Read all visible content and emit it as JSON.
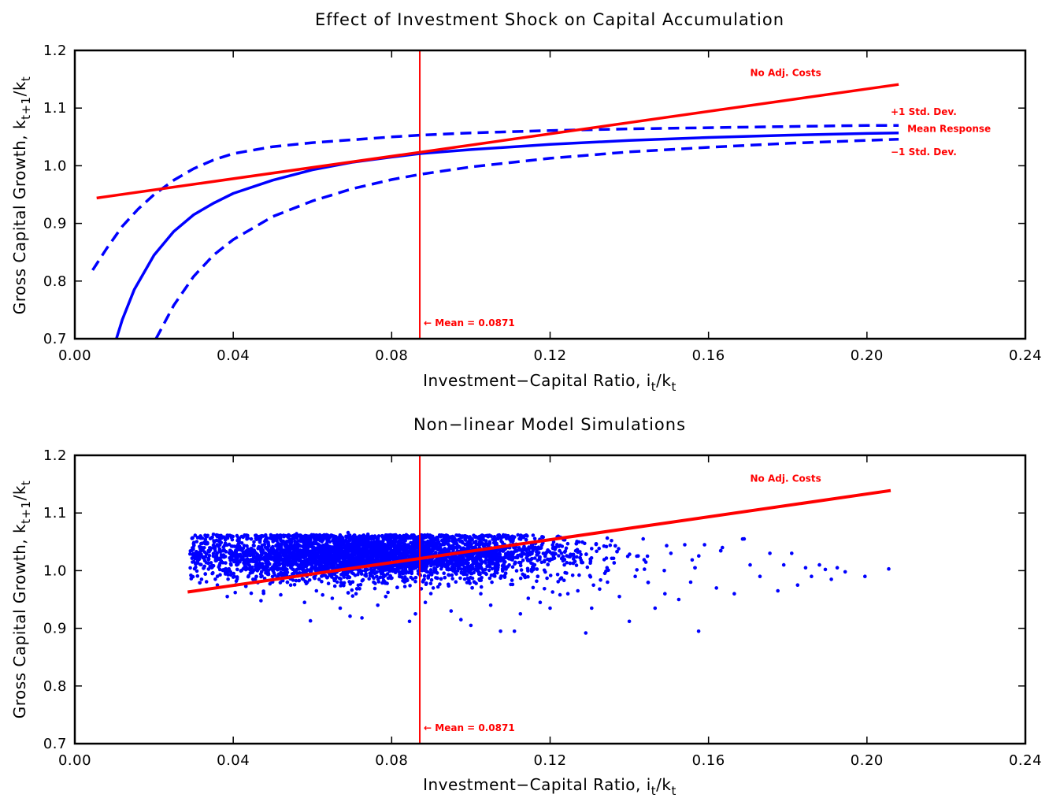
{
  "chart_data": [
    {
      "type": "line",
      "title": "Effect of Investment Shock on Capital Accumulation",
      "xlabel": "Investment−Capital Ratio, i_t/k_t",
      "ylabel": "Gross Capital Growth, k_t+1/k_t",
      "xlabel_parts": {
        "main": "Investment−Capital Ratio, i",
        "sub1": "t",
        "mid": "/k",
        "sub2": "t"
      },
      "ylabel_parts": {
        "main": "Gross Capital Growth, k",
        "sub1": "t+1",
        "mid": "/k",
        "sub2": "t"
      },
      "xlim": [
        0.0,
        0.24
      ],
      "ylim": [
        0.7,
        1.2
      ],
      "xticks": [
        0.0,
        0.04,
        0.08,
        0.12,
        0.16,
        0.2,
        0.24
      ],
      "xtick_labels": [
        "0.00",
        "0.04",
        "0.08",
        "0.12",
        "0.16",
        "0.20",
        "0.24"
      ],
      "yticks": [
        0.7,
        0.8,
        0.9,
        1.0,
        1.1,
        1.2
      ],
      "ytick_labels": [
        "0.7",
        "0.8",
        "0.9",
        "1.0",
        "1.1",
        "1.2"
      ],
      "grid": false,
      "colors": {
        "line": "#ff0000",
        "response": "#0000ff"
      },
      "series": [
        {
          "name": "No Adj. Costs",
          "style": "solid",
          "color": "#ff0000",
          "x": [
            0.0055,
            0.208
          ],
          "y": [
            0.944,
            1.141
          ]
        },
        {
          "name": "+1 Std. Dev.",
          "style": "dashed",
          "color": "#0000ff",
          "x": [
            0.0045,
            0.008,
            0.012,
            0.016,
            0.02,
            0.025,
            0.03,
            0.035,
            0.04,
            0.05,
            0.06,
            0.07,
            0.08,
            0.0871,
            0.1,
            0.12,
            0.14,
            0.16,
            0.18,
            0.2,
            0.208
          ],
          "y": [
            0.819,
            0.856,
            0.895,
            0.925,
            0.95,
            0.975,
            0.995,
            1.01,
            1.021,
            1.033,
            1.04,
            1.045,
            1.05,
            1.053,
            1.057,
            1.061,
            1.064,
            1.066,
            1.068,
            1.07,
            1.07
          ]
        },
        {
          "name": "Mean Response",
          "style": "solid",
          "color": "#0000ff",
          "x": [
            0.0105,
            0.012,
            0.015,
            0.02,
            0.025,
            0.03,
            0.035,
            0.04,
            0.05,
            0.06,
            0.07,
            0.08,
            0.0871,
            0.1,
            0.12,
            0.14,
            0.16,
            0.18,
            0.2,
            0.208
          ],
          "y": [
            0.7,
            0.733,
            0.785,
            0.845,
            0.886,
            0.915,
            0.935,
            0.952,
            0.975,
            0.993,
            1.006,
            1.015,
            1.021,
            1.028,
            1.037,
            1.044,
            1.049,
            1.053,
            1.056,
            1.057
          ]
        },
        {
          "name": "−1 Std. Dev.",
          "style": "dashed",
          "color": "#0000ff",
          "x": [
            0.0205,
            0.025,
            0.03,
            0.035,
            0.04,
            0.05,
            0.06,
            0.07,
            0.08,
            0.0871,
            0.1,
            0.12,
            0.14,
            0.16,
            0.18,
            0.2,
            0.208
          ],
          "y": [
            0.7,
            0.758,
            0.808,
            0.845,
            0.872,
            0.912,
            0.939,
            0.96,
            0.976,
            0.985,
            0.998,
            1.013,
            1.024,
            1.032,
            1.039,
            1.044,
            1.046
          ]
        }
      ],
      "vline": {
        "x": 0.0871,
        "label": "← Mean = 0.0871",
        "color": "#ff0000"
      },
      "annotations": [
        {
          "text": "No Adj. Costs",
          "x": 0.1705,
          "y": 1.1555
        },
        {
          "text": "+1 Std. Dev.",
          "x": 0.206,
          "y": 1.088
        },
        {
          "text": "Mean Response",
          "x": 0.2102,
          "y": 1.0585
        },
        {
          "text": "−1 Std. Dev.",
          "x": 0.206,
          "y": 1.0185
        }
      ]
    },
    {
      "type": "scatter",
      "title": "Non−linear Model Simulations",
      "xlabel": "Investment−Capital Ratio, i_t/k_t",
      "ylabel": "Gross Capital Growth, k_t+1/k_t",
      "xlabel_parts": {
        "main": "Investment−Capital Ratio, i",
        "sub1": "t",
        "mid": "/k",
        "sub2": "t"
      },
      "ylabel_parts": {
        "main": "Gross Capital Growth, k",
        "sub1": "t+1",
        "mid": "/k",
        "sub2": "t"
      },
      "xlim": [
        0.0,
        0.24
      ],
      "ylim": [
        0.7,
        1.2
      ],
      "xticks": [
        0.0,
        0.04,
        0.08,
        0.12,
        0.16,
        0.2,
        0.24
      ],
      "xtick_labels": [
        "0.00",
        "0.04",
        "0.08",
        "0.12",
        "0.16",
        "0.20",
        "0.24"
      ],
      "yticks": [
        0.7,
        0.8,
        0.9,
        1.0,
        1.1,
        1.2
      ],
      "ytick_labels": [
        "0.7",
        "0.8",
        "0.9",
        "1.0",
        "1.1",
        "1.2"
      ],
      "grid": false,
      "colors": {
        "line": "#ff0000",
        "points": "#0000ff"
      },
      "series": [
        {
          "name": "No Adj. Costs",
          "style": "solid",
          "color": "#ff0000",
          "x": [
            0.0285,
            0.206
          ],
          "y": [
            0.963,
            1.139
          ]
        }
      ],
      "scatter_points": [
        [
          0.0295,
          1.035
        ],
        [
          0.0305,
          1.006
        ],
        [
          0.032,
          0.985
        ],
        [
          0.0335,
          1.048
        ],
        [
          0.035,
          1.063
        ],
        [
          0.036,
          0.975
        ],
        [
          0.0385,
          0.955
        ],
        [
          0.0405,
          0.962
        ],
        [
          0.0425,
          1.058
        ],
        [
          0.045,
          0.985
        ],
        [
          0.047,
          0.948
        ],
        [
          0.0495,
          1.062
        ],
        [
          0.052,
          0.958
        ],
        [
          0.0545,
          0.975
        ],
        [
          0.056,
          1.064
        ],
        [
          0.058,
          0.945
        ],
        [
          0.0595,
          0.913
        ],
        [
          0.061,
          0.965
        ],
        [
          0.063,
          1.062
        ],
        [
          0.065,
          0.952
        ],
        [
          0.067,
          0.935
        ],
        [
          0.069,
          1.066
        ],
        [
          0.0695,
          0.921
        ],
        [
          0.071,
          0.96
        ],
        [
          0.0725,
          0.918
        ],
        [
          0.074,
          1.063
        ],
        [
          0.0765,
          0.94
        ],
        [
          0.0785,
          0.955
        ],
        [
          0.081,
          1.062
        ],
        [
          0.0845,
          0.912
        ],
        [
          0.086,
          0.925
        ],
        [
          0.0885,
          0.945
        ],
        [
          0.0905,
          0.97
        ],
        [
          0.0925,
          1.06
        ],
        [
          0.095,
          0.93
        ],
        [
          0.0975,
          0.915
        ],
        [
          0.1,
          0.905
        ],
        [
          0.1025,
          0.96
        ],
        [
          0.105,
          0.94
        ],
        [
          0.1075,
          0.895
        ],
        [
          0.111,
          0.895
        ],
        [
          0.1125,
          0.925
        ],
        [
          0.1145,
          0.952
        ],
        [
          0.1175,
          0.945
        ],
        [
          0.12,
          0.935
        ],
        [
          0.1225,
          0.958
        ],
        [
          0.1245,
          0.96
        ],
        [
          0.127,
          0.965
        ],
        [
          0.129,
          0.892
        ],
        [
          0.1305,
          0.935
        ],
        [
          0.1325,
          0.968
        ],
        [
          0.1345,
          0.98
        ],
        [
          0.1355,
          1.052
        ],
        [
          0.1375,
          0.955
        ],
        [
          0.14,
          0.912
        ],
        [
          0.1415,
          0.99
        ],
        [
          0.1435,
          1.055
        ],
        [
          0.1465,
          0.935
        ],
        [
          0.149,
          0.96
        ],
        [
          0.1505,
          1.03
        ],
        [
          0.1525,
          0.95
        ],
        [
          0.154,
          1.045
        ],
        [
          0.1555,
          0.98
        ],
        [
          0.1575,
          0.895
        ],
        [
          0.159,
          1.045
        ],
        [
          0.162,
          0.97
        ],
        [
          0.1635,
          1.04
        ],
        [
          0.1665,
          0.96
        ],
        [
          0.169,
          1.055
        ],
        [
          0.1705,
          1.01
        ],
        [
          0.173,
          0.99
        ],
        [
          0.1755,
          1.03
        ],
        [
          0.1775,
          0.965
        ],
        [
          0.179,
          1.01
        ],
        [
          0.181,
          1.03
        ],
        [
          0.1825,
          0.975
        ],
        [
          0.1845,
          1.005
        ],
        [
          0.186,
          0.99
        ],
        [
          0.188,
          1.01
        ],
        [
          0.1895,
          1.002
        ],
        [
          0.191,
          0.985
        ],
        [
          0.1925,
          1.005
        ],
        [
          0.1945,
          0.998
        ],
        [
          0.1995,
          0.99
        ],
        [
          0.2055,
          1.003
        ]
      ],
      "scatter_cloud": {
        "x_range": [
          0.029,
          0.17
        ],
        "x_center": 0.074,
        "x_spread": 0.025,
        "y_center": 1.027,
        "y_spread": 0.022,
        "y_max": 1.062,
        "y_min": 0.955,
        "count": 5000
      },
      "vline": {
        "x": 0.0871,
        "label": "← Mean = 0.0871",
        "color": "#ff0000"
      },
      "annotations": [
        {
          "text": "No Adj. Costs",
          "x": 0.1705,
          "y": 1.1545
        }
      ]
    }
  ]
}
